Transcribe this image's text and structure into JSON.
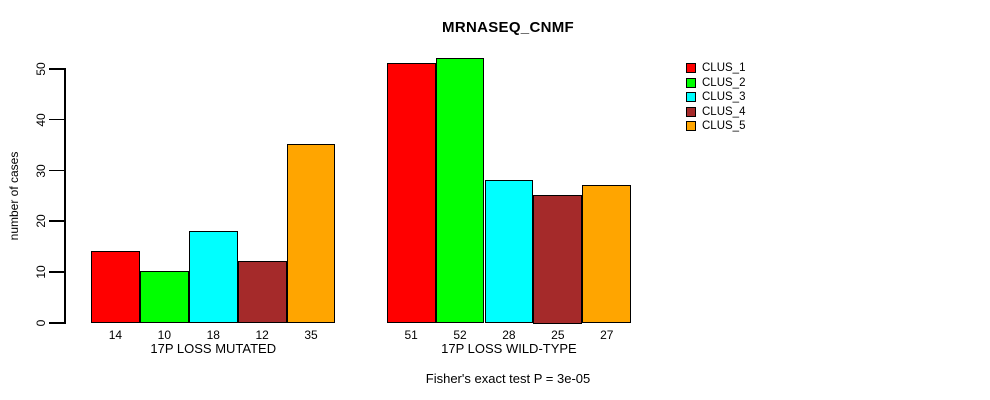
{
  "page": {
    "background_color": "#ffffff",
    "text_color": "#000000"
  },
  "chart_data": {
    "type": "bar",
    "title": "MRNASEQ_CNMF",
    "ylabel": "number of cases",
    "xlabel": "",
    "ylim": [
      0,
      50
    ],
    "yticks": [
      0,
      10,
      20,
      30,
      40,
      50
    ],
    "grid": false,
    "legend_position": "top-right",
    "annotation": "Fisher's exact test P = 3e-05",
    "groups": [
      {
        "label": "17P LOSS MUTATED",
        "values": [
          14,
          10,
          18,
          12,
          35
        ]
      },
      {
        "label": "17P LOSS WILD-TYPE",
        "values": [
          51,
          52,
          28,
          25,
          27
        ]
      }
    ],
    "legend": [
      {
        "label": "CLUS_1",
        "color": "#FF0000"
      },
      {
        "label": "CLUS_2",
        "color": "#00FF00"
      },
      {
        "label": "CLUS_3",
        "color": "#00FFFF"
      },
      {
        "label": "CLUS_4",
        "color": "#A52A2A"
      },
      {
        "label": "CLUS_5",
        "color": "#FFA500"
      }
    ]
  }
}
